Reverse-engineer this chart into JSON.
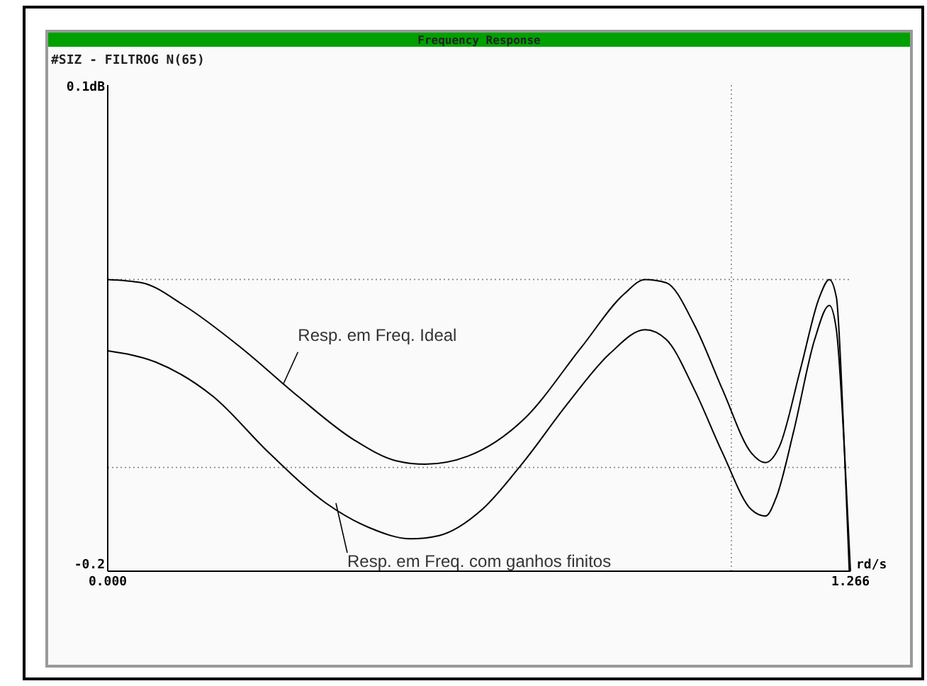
{
  "chart_data": {
    "type": "line",
    "title": "Frequency Response",
    "subtitle": "#SIZ - FILTROG N(65)",
    "xlabel": "rd/s",
    "xlim": [
      0,
      1.266
    ],
    "xticks": [
      {
        "value": 0,
        "label": "0.000"
      },
      {
        "value": 1.063,
        "label": null
      },
      {
        "value": 1.266,
        "label": "1.266"
      }
    ],
    "ylim": [
      -0.2,
      0.1
    ],
    "yticks": [
      {
        "value": -0.2,
        "label": "-0.2"
      },
      {
        "value": -0.136,
        "label": null
      },
      {
        "value": -0.02,
        "label": null
      },
      {
        "value": 0.1,
        "label": "0.1dB"
      }
    ],
    "grid": true,
    "x": [
      0,
      0.058,
      0.13,
      0.227,
      0.324,
      0.42,
      0.493,
      0.541,
      0.614,
      0.71,
      0.807,
      0.88,
      0.916,
      0.952,
      1.0,
      1.048,
      1.097,
      1.121,
      1.145,
      1.181,
      1.213,
      1.23,
      1.242,
      1.254,
      1.264
    ],
    "series": [
      {
        "color": "#000000",
        "values": [
          -0.02,
          -0.022,
          -0.036,
          -0.062,
          -0.092,
          -0.119,
          -0.132,
          -0.134,
          -0.129,
          -0.106,
          -0.062,
          -0.029,
          -0.02,
          -0.022,
          -0.048,
          -0.088,
          -0.127,
          -0.133,
          -0.123,
          -0.075,
          -0.031,
          -0.02,
          -0.031,
          -0.11,
          -0.2
        ]
      },
      {
        "color": "#000000",
        "x": [
          0,
          0.082,
          0.179,
          0.275,
          0.372,
          0.445,
          0.517,
          0.565,
          0.638,
          0.71,
          0.783,
          0.855,
          0.916,
          0.952,
          1.0,
          1.048,
          1.097,
          1.121,
          1.14,
          1.169,
          1.205,
          1.23,
          1.242,
          1.256,
          1.266
        ],
        "values": [
          -0.064,
          -0.071,
          -0.092,
          -0.127,
          -0.158,
          -0.173,
          -0.18,
          -0.178,
          -0.162,
          -0.132,
          -0.097,
          -0.066,
          -0.051,
          -0.057,
          -0.088,
          -0.127,
          -0.162,
          -0.166,
          -0.154,
          -0.114,
          -0.057,
          -0.036,
          -0.051,
          -0.127,
          -0.2
        ]
      }
    ],
    "annotations": [
      {
        "text": "Resp. em Freq. Ideal",
        "x": 0.3,
        "y": -0.084
      },
      {
        "text": "Resp. em Freq. com ganhos finitos",
        "x": 0.389,
        "y": -0.158
      }
    ]
  }
}
